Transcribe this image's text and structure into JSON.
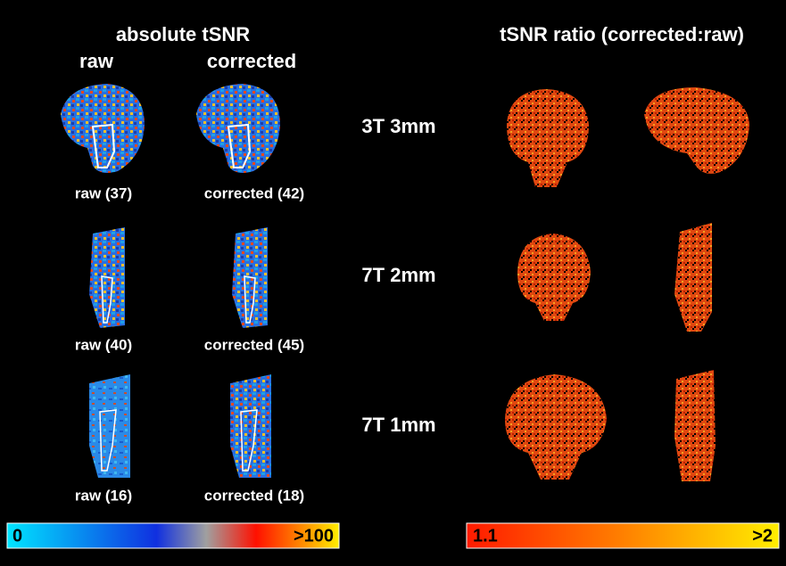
{
  "left_panel": {
    "title": "absolute tSNR",
    "columns": [
      "raw",
      "corrected"
    ],
    "rows": [
      [
        "raw (37)",
        "corrected (42)"
      ],
      [
        "raw (40)",
        "corrected (45)"
      ],
      [
        "raw (16)",
        "corrected (18)"
      ]
    ],
    "colorbar": {
      "min_label": "0",
      "max_label": ">100"
    }
  },
  "row_labels": [
    "3T 3mm",
    "7T 2mm",
    "7T 1mm"
  ],
  "right_panel": {
    "title": "tSNR ratio (corrected:raw)",
    "colorbar": {
      "min_label": "1.1",
      "max_label": ">2"
    }
  }
}
